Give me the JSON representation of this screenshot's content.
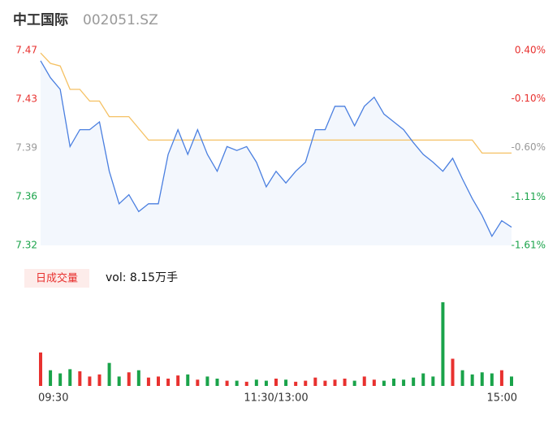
{
  "header": {
    "name": "中工国际",
    "code": "002051.SZ"
  },
  "chart_data": [
    {
      "type": "line",
      "ylim": [
        7.32,
        7.47
      ],
      "yticks": [
        7.47,
        {
          "value": 7.4325,
          "label": "7.43"
        },
        {
          "value": 7.395,
          "label": "7.39"
        },
        {
          "value": 7.3575,
          "label": "7.36"
        },
        7.32
      ],
      "ytick_colors": [
        "#e8312f",
        "#e8312f",
        "#999999",
        "#1aa34a",
        "#1aa34a"
      ],
      "y2lim": [
        -1.61,
        0.4
      ],
      "y2ticks": [
        {
          "value": 0.4,
          "label": "0.40%"
        },
        {
          "value": -0.1,
          "label": "-0.10%"
        },
        {
          "value": -0.6,
          "label": "-0.60%"
        },
        {
          "value": -1.11,
          "label": "-1.11%"
        },
        {
          "value": -1.61,
          "label": "-1.61%"
        }
      ],
      "fill_color": "#f3f7fd",
      "series": [
        {
          "color": "#4a7fe0",
          "values": [
            7.462,
            7.449,
            7.44,
            7.396,
            7.409,
            7.409,
            7.415,
            7.377,
            7.352,
            7.359,
            7.346,
            7.352,
            7.352,
            7.39,
            7.409,
            7.39,
            7.409,
            7.39,
            7.377,
            7.396,
            7.393,
            7.396,
            7.384,
            7.365,
            7.377,
            7.368,
            7.377,
            7.384,
            7.409,
            7.409,
            7.427,
            7.427,
            7.412,
            7.427,
            7.434,
            7.421,
            7.415,
            7.409,
            7.399,
            7.39,
            7.384,
            7.377,
            7.387,
            7.371,
            7.356,
            7.343,
            7.327,
            7.339,
            7.334
          ]
        },
        {
          "color": "#f5c163",
          "values": [
            7.468,
            7.46,
            7.458,
            7.44,
            7.44,
            7.431,
            7.431,
            7.419,
            7.419,
            7.419,
            7.41,
            7.401,
            7.401,
            7.401,
            7.401,
            7.401,
            7.401,
            7.401,
            7.401,
            7.401,
            7.401,
            7.401,
            7.401,
            7.401,
            7.401,
            7.401,
            7.401,
            7.401,
            7.401,
            7.401,
            7.401,
            7.401,
            7.401,
            7.401,
            7.401,
            7.401,
            7.401,
            7.401,
            7.401,
            7.401,
            7.401,
            7.401,
            7.401,
            7.401,
            7.401,
            7.391,
            7.391,
            7.391,
            7.391
          ]
        }
      ]
    },
    {
      "type": "bar",
      "title": "日成交量",
      "subtitle": "vol: 8.15万手",
      "up_color": "#e8312f",
      "down_color": "#1aa34a",
      "categories": [
        "09:30",
        null,
        null,
        null,
        null,
        null,
        null,
        null,
        null,
        null,
        null,
        null,
        null,
        null,
        null,
        null,
        null,
        null,
        null,
        null,
        null,
        null,
        null,
        null,
        "11:30/13:00",
        null,
        null,
        null,
        null,
        null,
        null,
        null,
        null,
        null,
        null,
        null,
        null,
        null,
        null,
        null,
        null,
        null,
        null,
        null,
        null,
        null,
        null,
        null,
        "15:00"
      ],
      "values": [
        3200,
        1500,
        1200,
        1600,
        1400,
        900,
        1100,
        2200,
        900,
        1300,
        1500,
        800,
        900,
        700,
        1000,
        1100,
        600,
        900,
        700,
        500,
        500,
        400,
        600,
        500,
        700,
        600,
        400,
        500,
        800,
        500,
        600,
        700,
        500,
        900,
        600,
        500,
        700,
        600,
        800,
        1200,
        900,
        8000,
        2600,
        1500,
        1100,
        1300,
        1200,
        1500,
        900
      ]
    }
  ]
}
